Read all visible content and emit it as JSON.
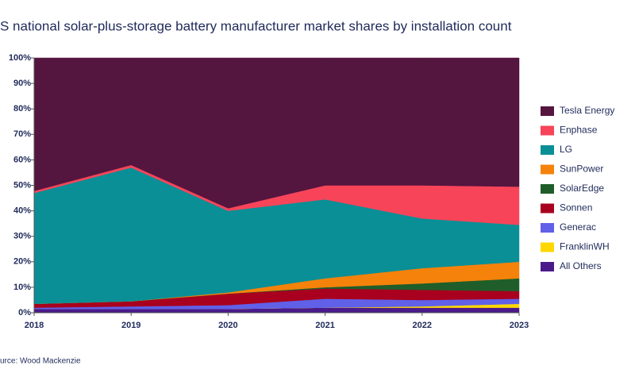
{
  "chart_data": {
    "type": "stacked_area",
    "title": "S national solar-plus-storage  battery manufacturer  market shares by installation count",
    "source": "urce: Wood Mackenzie",
    "categories": [
      "2018",
      "2019",
      "2020",
      "2021",
      "2022",
      "2023"
    ],
    "ylim": [
      0,
      100
    ],
    "yticks": [
      {
        "value": 0,
        "label": "0%"
      },
      {
        "value": 10,
        "label": "10%"
      },
      {
        "value": 20,
        "label": "20%"
      },
      {
        "value": 30,
        "label": "30%"
      },
      {
        "value": 40,
        "label": "40%"
      },
      {
        "value": 50,
        "label": "50%"
      },
      {
        "value": 60,
        "label": "60%"
      },
      {
        "value": 70,
        "label": "70%"
      },
      {
        "value": 80,
        "label": "80%"
      },
      {
        "value": 90,
        "label": "90%"
      },
      {
        "value": 100,
        "label": "100%"
      }
    ],
    "series": [
      {
        "name": "All Others",
        "color": "#4b1a8a",
        "values": [
          1.5,
          1.5,
          1.5,
          2,
          2,
          2
        ]
      },
      {
        "name": "FranklinWH",
        "color": "#ffd700",
        "values": [
          0,
          0,
          0,
          0,
          0.5,
          1.5
        ]
      },
      {
        "name": "Generac",
        "color": "#6060e8",
        "values": [
          0.5,
          1,
          1.5,
          3.5,
          2.5,
          2
        ]
      },
      {
        "name": "Sonnen",
        "color": "#a8001e",
        "values": [
          1.5,
          2,
          4.5,
          4,
          4,
          3
        ]
      },
      {
        "name": "SolarEdge",
        "color": "#1f5e2a",
        "values": [
          0,
          0,
          0,
          0.5,
          2.5,
          5
        ]
      },
      {
        "name": "SunPower",
        "color": "#f5820a",
        "values": [
          0,
          0,
          0.5,
          3.5,
          6,
          6.5
        ]
      },
      {
        "name": "LG",
        "color": "#0a8f96",
        "values": [
          43.5,
          52.5,
          32,
          31,
          19.5,
          14.5
        ]
      },
      {
        "name": "Enphase",
        "color": "#f74459",
        "values": [
          0.8,
          1,
          1,
          5.5,
          13,
          15
        ]
      },
      {
        "name": "Tesla Energy",
        "color": "#54153f",
        "values": [
          52.2,
          42,
          59,
          50,
          50,
          50.5
        ]
      }
    ]
  }
}
